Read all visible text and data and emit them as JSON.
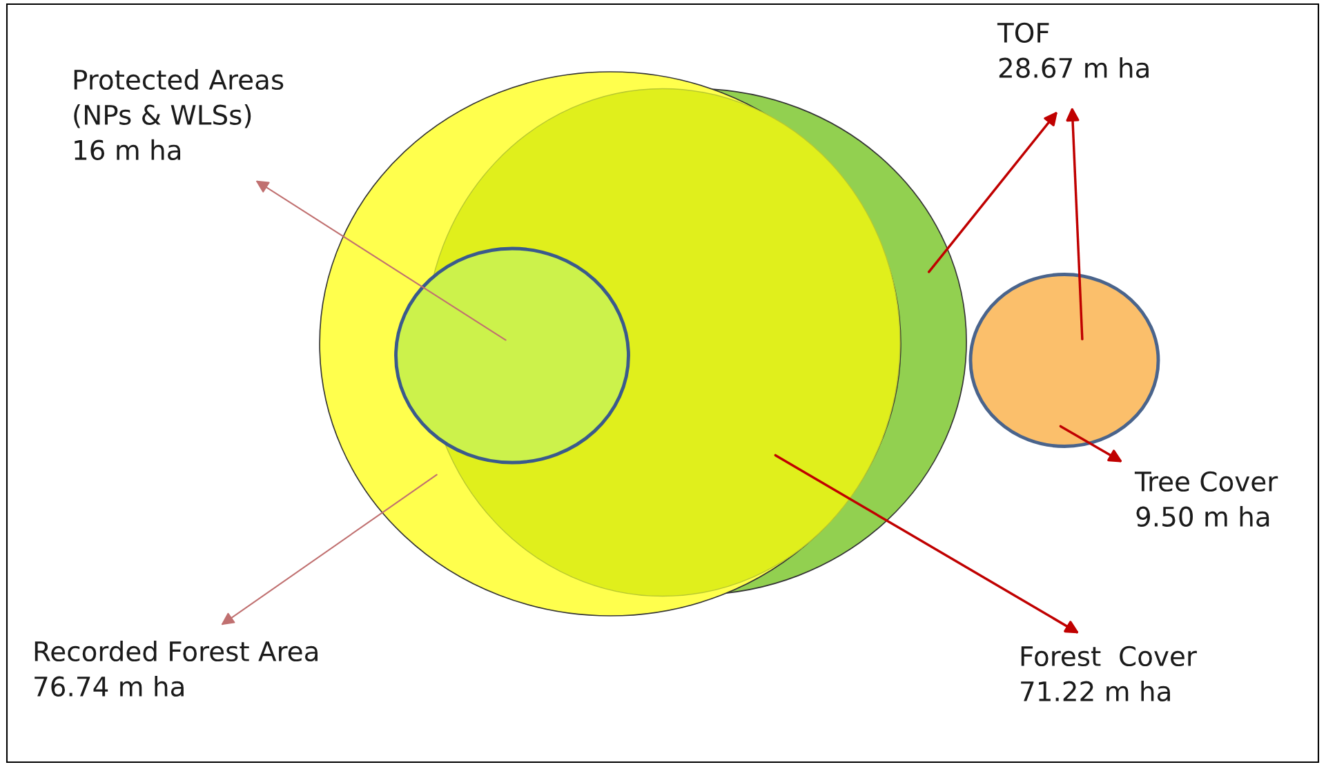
{
  "chart_data": {
    "type": "other",
    "categories": [
      "Protected Areas\n(NPs & WLSs)",
      "TOF",
      "Tree Cover",
      "Recorded Forest Area",
      "Forest  Cover"
    ],
    "values": [
      16,
      28.67,
      9.5,
      76.74,
      71.22
    ],
    "value_labels": [
      "16 m ha",
      "28.67 m ha",
      "9.50 m ha",
      "76.74 m ha",
      "71.22 m ha"
    ],
    "colors": [
      "#ccf24b",
      "#92d050",
      "#fbbf6b",
      "#ffff4d",
      "#e0ef1c"
    ]
  }
}
